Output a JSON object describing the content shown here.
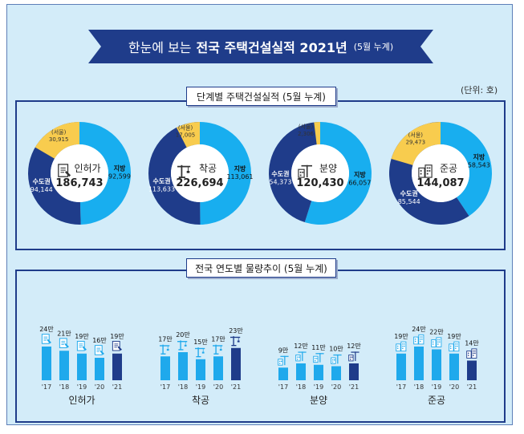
{
  "header": {
    "title_light": "한눈에 보는",
    "title_bold": "전국 주택건설실적 2021년",
    "title_small": "(5월 누계)"
  },
  "unit": "(단위: 호)",
  "section1": {
    "title": "단계별 주택건설실적 (5월 누계)"
  },
  "section2": {
    "title": "전국 연도별 물량추이 (5월 누계)"
  },
  "colors": {
    "capital": "#1f3c8a",
    "local": "#18aeef",
    "seoul": "#f8cc4e",
    "dark_bar": "#1f3c8a",
    "light_bar": "#1fa9ec",
    "frame_bg": "#d3ecf9"
  },
  "chart_data": [
    {
      "type": "pie",
      "title": "단계별 주택건설실적 (5월 누계)",
      "unit": "(단위: 호)",
      "donuts": [
        {
          "stage": "인허가",
          "total": "186,743",
          "icon": "document-icon",
          "slices": [
            {
              "name": "지방",
              "value": 92599,
              "label": "92,599"
            },
            {
              "name": "수도권",
              "value": 94144,
              "label": "94,144"
            }
          ],
          "seoul": {
            "name": "(서울)",
            "value": 30915,
            "label": "30,915"
          }
        },
        {
          "stage": "착공",
          "total": "226,694",
          "icon": "crane-icon",
          "slices": [
            {
              "name": "지방",
              "value": 113061,
              "label": "113,061"
            },
            {
              "name": "수도권",
              "value": 113633,
              "label": "113,633"
            }
          ],
          "seoul": {
            "name": "(서울)",
            "value": 17005,
            "label": "17,005"
          }
        },
        {
          "stage": "분양",
          "total": "120,430",
          "icon": "building-crane-icon",
          "slices": [
            {
              "name": "지방",
              "value": 66057,
              "label": "66,057"
            },
            {
              "name": "수도권",
              "value": 54373,
              "label": "54,373"
            }
          ],
          "seoul": {
            "name": "(서울)",
            "value": 2306,
            "label": "2,306"
          }
        },
        {
          "stage": "준공",
          "total": "144,087",
          "icon": "apartment-icon",
          "slices": [
            {
              "name": "지방",
              "value": 58543,
              "label": "58,543"
            },
            {
              "name": "수도권",
              "value": 85544,
              "label": "85,544"
            }
          ],
          "seoul": {
            "name": "(서울)",
            "value": 29473,
            "label": "29,473"
          }
        }
      ]
    },
    {
      "type": "bar",
      "title": "전국 연도별 물량추이 (5월 누계)",
      "categories": [
        "'17",
        "'18",
        "'19",
        "'20",
        "'21"
      ],
      "groups": [
        {
          "name": "인허가",
          "icon": "document-icon",
          "values": [
            24,
            21,
            19,
            16,
            19
          ],
          "labels": [
            "24만",
            "21만",
            "19만",
            "16만",
            "19만"
          ]
        },
        {
          "name": "착공",
          "icon": "crane-icon",
          "values": [
            17,
            20,
            15,
            17,
            23
          ],
          "labels": [
            "17만",
            "20만",
            "15만",
            "17만",
            "23만"
          ]
        },
        {
          "name": "분양",
          "icon": "building-crane-icon",
          "values": [
            9,
            12,
            11,
            10,
            12
          ],
          "labels": [
            "9만",
            "12만",
            "11만",
            "10만",
            "12만"
          ]
        },
        {
          "name": "준공",
          "icon": "apartment-icon",
          "values": [
            19,
            24,
            22,
            19,
            14
          ],
          "labels": [
            "19만",
            "24만",
            "22만",
            "19만",
            "14만"
          ]
        }
      ]
    }
  ]
}
